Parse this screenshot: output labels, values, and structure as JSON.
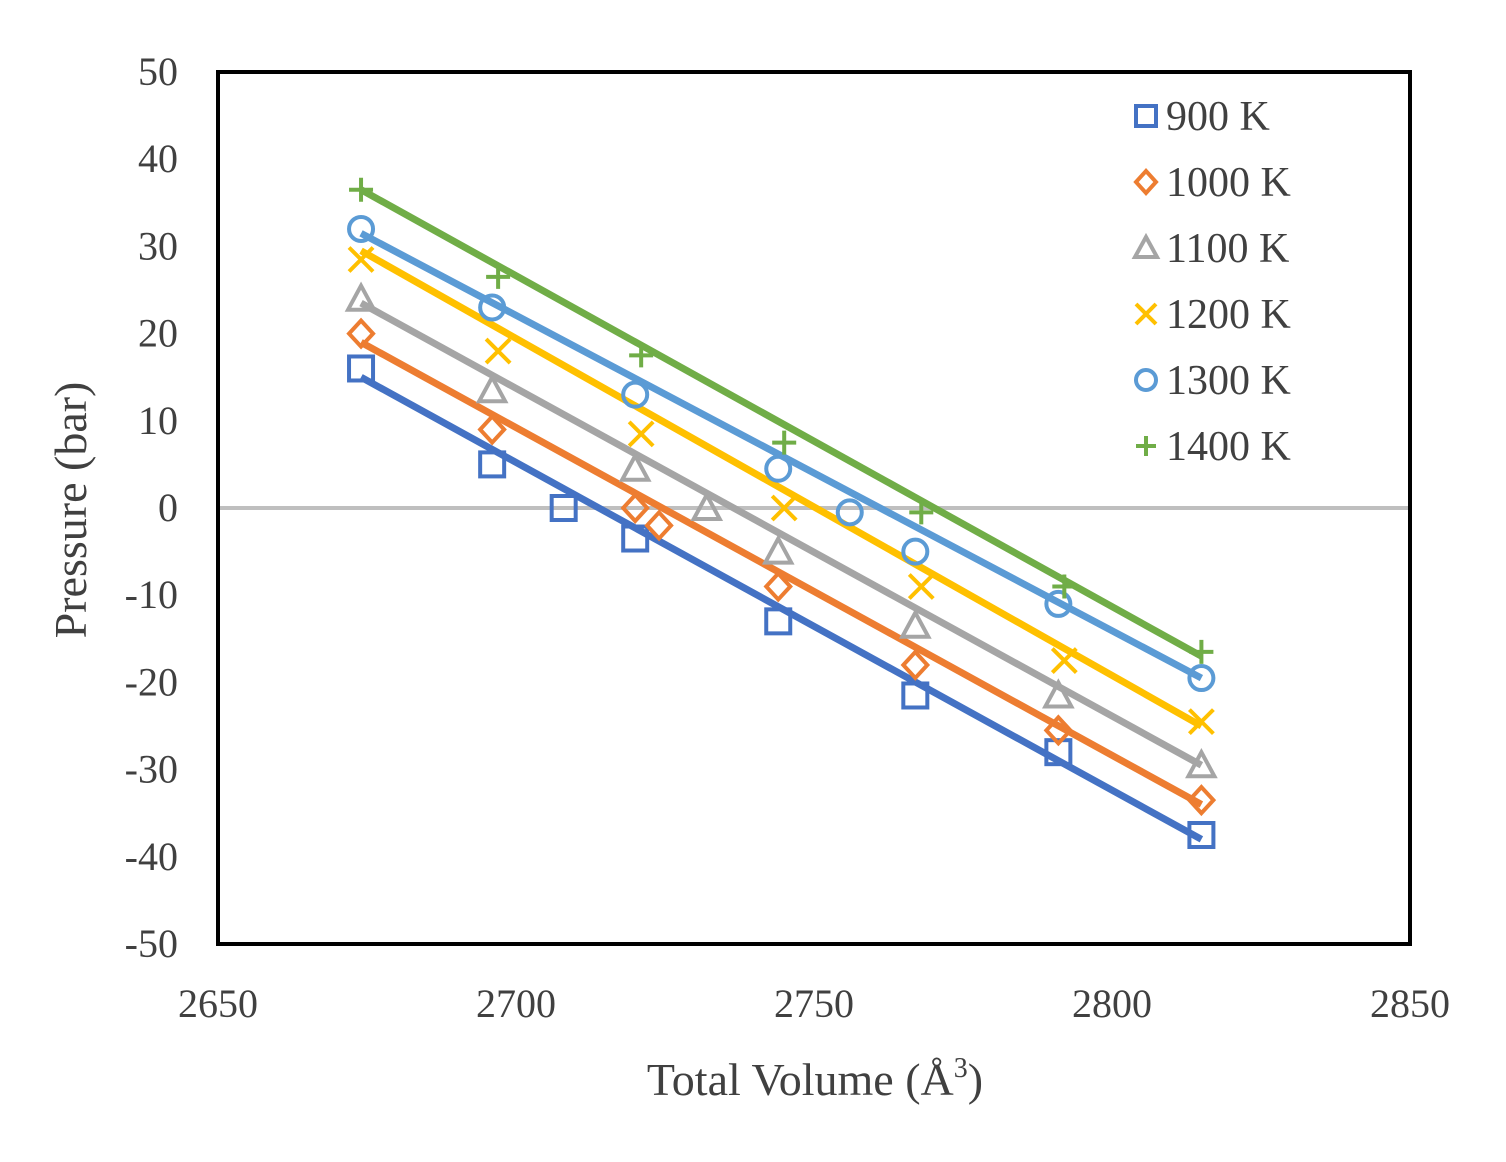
{
  "chart_data": {
    "type": "scatter",
    "title": "",
    "xlabel": "Total Volume (Å",
    "xlabel_sup": "3",
    "xlabel_close": ")",
    "ylabel": "Pressure (bar)",
    "xlim": [
      2650,
      2850
    ],
    "ylim": [
      -50,
      50
    ],
    "xticks": [
      "2650",
      "2700",
      "2750",
      "2800",
      "2850"
    ],
    "yticks": [
      "50",
      "40",
      "30",
      "20",
      "10",
      "0",
      "-10",
      "-20",
      "-30",
      "-40",
      "-50"
    ],
    "grid": false,
    "zero_line": true,
    "zero_line_color": "#bfbfbf",
    "legend_position": "top-right",
    "series": [
      {
        "name": "900 K",
        "color": "#4472c4",
        "marker": "square",
        "points": [
          [
            2674,
            16
          ],
          [
            2696,
            5
          ],
          [
            2708,
            0
          ],
          [
            2720,
            -3.5
          ],
          [
            2744,
            -13
          ],
          [
            2767,
            -21.5
          ],
          [
            2791,
            -28
          ],
          [
            2815,
            -37.5
          ]
        ],
        "fit": [
          [
            2674,
            15
          ],
          [
            2815,
            -38
          ]
        ]
      },
      {
        "name": "1000 K",
        "color": "#ed7d31",
        "marker": "diamond",
        "points": [
          [
            2674,
            20
          ],
          [
            2696,
            9
          ],
          [
            2720,
            0
          ],
          [
            2724,
            -2
          ],
          [
            2744,
            -9
          ],
          [
            2767,
            -18
          ],
          [
            2791,
            -25.5
          ],
          [
            2815,
            -33.5
          ]
        ],
        "fit": [
          [
            2674,
            19
          ],
          [
            2815,
            -34
          ]
        ]
      },
      {
        "name": "1100 K",
        "color": "#a5a5a5",
        "marker": "triangle",
        "points": [
          [
            2674,
            24
          ],
          [
            2696,
            13.5
          ],
          [
            2720,
            4.5
          ],
          [
            2732,
            0
          ],
          [
            2744,
            -5
          ],
          [
            2767,
            -13.5
          ],
          [
            2791,
            -21.5
          ],
          [
            2815,
            -29.5
          ]
        ],
        "fit": [
          [
            2674,
            23.5
          ],
          [
            2815,
            -29.5
          ]
        ]
      },
      {
        "name": "1200 K",
        "color": "#ffc000",
        "marker": "x",
        "points": [
          [
            2674,
            28.5
          ],
          [
            2697,
            18
          ],
          [
            2721,
            8.5
          ],
          [
            2745,
            0
          ],
          [
            2768,
            -9
          ],
          [
            2792,
            -17.5
          ],
          [
            2815,
            -24.5
          ]
        ],
        "fit": [
          [
            2674,
            29.5
          ],
          [
            2815,
            -25
          ]
        ]
      },
      {
        "name": "1300 K",
        "color": "#5b9bd5",
        "marker": "circle",
        "points": [
          [
            2674,
            32
          ],
          [
            2696,
            23
          ],
          [
            2720,
            13
          ],
          [
            2744,
            4.5
          ],
          [
            2756,
            -0.5
          ],
          [
            2767,
            -5
          ],
          [
            2791,
            -11
          ],
          [
            2815,
            -19.5
          ]
        ],
        "fit": [
          [
            2674,
            31.5
          ],
          [
            2815,
            -19.5
          ]
        ]
      },
      {
        "name": "1400 K",
        "color": "#70ad47",
        "marker": "plus",
        "points": [
          [
            2674,
            36.5
          ],
          [
            2697,
            26.5
          ],
          [
            2721,
            17.5
          ],
          [
            2745,
            7.5
          ],
          [
            2768,
            -0.5
          ],
          [
            2792,
            -9
          ],
          [
            2815,
            -16.5
          ]
        ],
        "fit": [
          [
            2674,
            36.5
          ],
          [
            2815,
            -17
          ]
        ]
      }
    ]
  }
}
